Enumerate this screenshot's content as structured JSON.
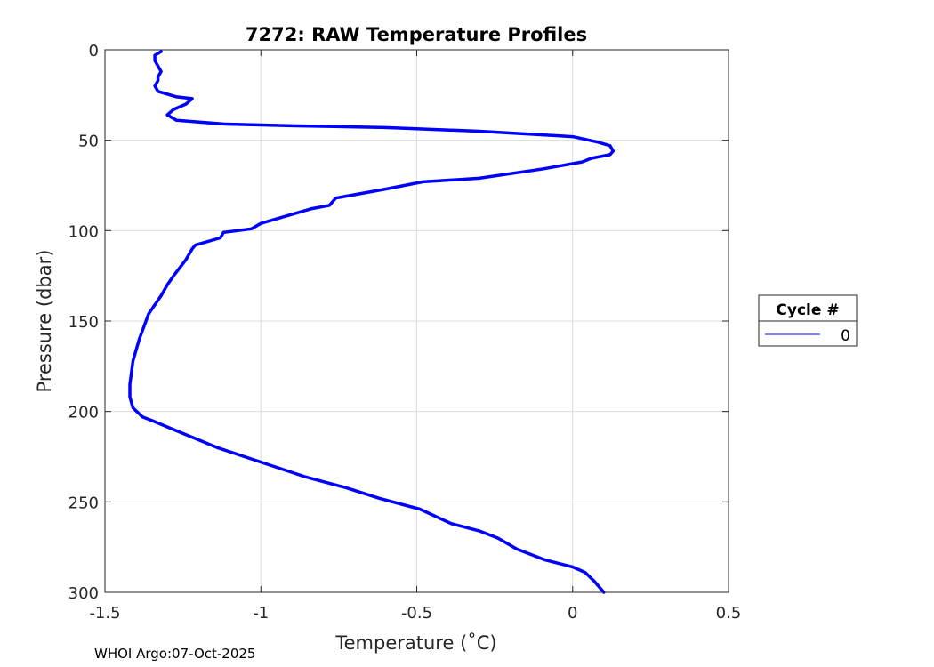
{
  "colors": {
    "series": "#0000ff",
    "grid": "#dcdcdc",
    "axis": "#262626"
  },
  "chart_data": {
    "type": "line",
    "title": "7272: RAW Temperature Profiles",
    "xlabel": "Temperature (˚C)",
    "ylabel": "Pressure (dbar)",
    "xlim": [
      -1.5,
      0.5
    ],
    "ylim": [
      0,
      300
    ],
    "y_reversed": true,
    "grid": true,
    "x_ticks": [
      -1.5,
      -1,
      -0.5,
      0,
      0.5
    ],
    "x_tick_labels": [
      "-1.5",
      "-1",
      "-0.5",
      "0",
      "0.5"
    ],
    "y_ticks": [
      0,
      50,
      100,
      150,
      200,
      250,
      300
    ],
    "y_tick_labels": [
      "0",
      "50",
      "100",
      "150",
      "200",
      "250",
      "300"
    ],
    "legend": {
      "title": "Cycle #",
      "placement": "right",
      "entries": [
        "0"
      ]
    },
    "series": [
      {
        "name": "0",
        "temperature": [
          -1.32,
          -1.34,
          -1.34,
          -1.33,
          -1.32,
          -1.33,
          -1.33,
          -1.34,
          -1.33,
          -1.27,
          -1.22,
          -1.24,
          -1.28,
          -1.3,
          -1.27,
          -1.12,
          -0.9,
          -0.6,
          -0.3,
          0.0,
          0.08,
          0.12,
          0.13,
          0.12,
          0.06,
          0.03,
          -0.1,
          -0.3,
          -0.48,
          -0.6,
          -0.76,
          -0.78,
          -0.84,
          -0.94,
          -1.0,
          -1.03,
          -1.12,
          -1.13,
          -1.21,
          -1.22,
          -1.24,
          -1.28,
          -1.3,
          -1.32,
          -1.36,
          -1.39,
          -1.41,
          -1.42,
          -1.42,
          -1.41,
          -1.38,
          -1.35,
          -1.28,
          -1.14,
          -1.0,
          -0.86,
          -0.73,
          -0.62,
          -0.49,
          -0.39,
          -0.3,
          -0.24,
          -0.18,
          -0.09,
          0.0,
          0.04,
          0.07,
          0.1
        ],
        "pressure": [
          1,
          3,
          6,
          9,
          12,
          15,
          17,
          20,
          23,
          26,
          27,
          30,
          33,
          36,
          39,
          41,
          42,
          43,
          45,
          48,
          51,
          53,
          56,
          58,
          60,
          62,
          66,
          71,
          73,
          77,
          82,
          86,
          88,
          93,
          96,
          99,
          101,
          104,
          108,
          110,
          116,
          125,
          130,
          136,
          146,
          160,
          172,
          185,
          192,
          198,
          203,
          205,
          210,
          220,
          228,
          236,
          242,
          248,
          254,
          262,
          266,
          270,
          276,
          282,
          286,
          289,
          294,
          300
        ]
      }
    ]
  },
  "footer": "WHOI Argo:07-Oct-2025"
}
